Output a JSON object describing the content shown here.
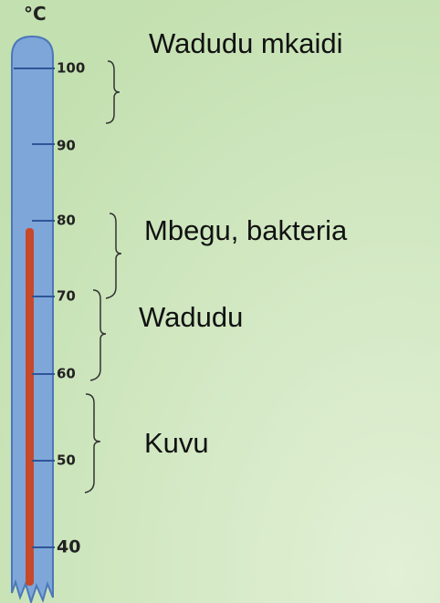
{
  "unit": "°C",
  "scale": {
    "labels": [
      "100",
      "90",
      "80",
      "70",
      "60",
      "50",
      "40"
    ]
  },
  "ranges": [
    {
      "label": "Wadudu mkaidi"
    },
    {
      "label": "Mbegu, bakteria"
    },
    {
      "label": "Wadudu"
    },
    {
      "label": "Kuvu"
    }
  ]
}
